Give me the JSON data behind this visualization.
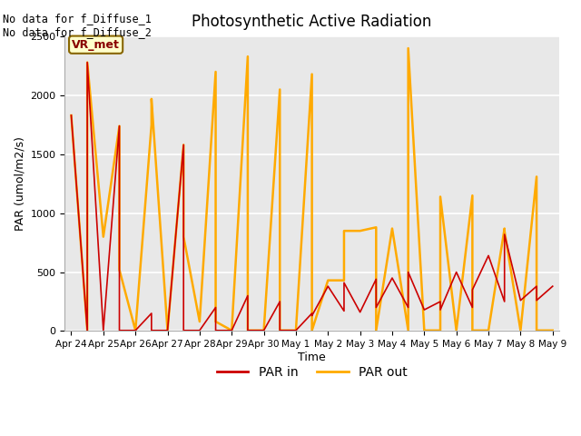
{
  "title": "Photosynthetic Active Radiation",
  "xlabel": "Time",
  "ylabel": "PAR (umol/m2/s)",
  "annotation_text": "No data for f_Diffuse_1\nNo data for f_Diffuse_2",
  "box_label": "VR_met",
  "ylim": [
    0,
    2500
  ],
  "background_color": "#e8e8e8",
  "x_tick_labels": [
    "Apr 24",
    "Apr 25",
    "Apr 26",
    "Apr 27",
    "Apr 28",
    "Apr 29",
    "Apr 30",
    "May 1",
    "May 2",
    "May 3",
    "May 4",
    "May 5",
    "May 6",
    "May 7",
    "May 8",
    "May 9"
  ],
  "par_in_color": "#cc0000",
  "par_out_color": "#ffaa00",
  "par_in_x": [
    0,
    0.5,
    0.5,
    1.0,
    1.5,
    1.5,
    2.0,
    2.5,
    2.5,
    3.0,
    3.5,
    3.5,
    4.0,
    4.5,
    4.5,
    5.0,
    5.5,
    5.5,
    6.0,
    6.5,
    6.5,
    7.0,
    7.5,
    7.5,
    8.0,
    8.5,
    8.5,
    9.0,
    9.5,
    9.5,
    10.0,
    10.5,
    10.5,
    11.0,
    11.5,
    11.5,
    12.0,
    12.5,
    12.5,
    13.0,
    13.5,
    13.5,
    14.0,
    14.5,
    14.5,
    15.0
  ],
  "par_in_y": [
    1830,
    5,
    2280,
    5,
    1740,
    5,
    5,
    150,
    5,
    5,
    1580,
    5,
    5,
    200,
    5,
    5,
    300,
    5,
    5,
    250,
    5,
    5,
    150,
    130,
    380,
    170,
    410,
    160,
    440,
    200,
    450,
    200,
    500,
    180,
    250,
    180,
    500,
    200,
    350,
    640,
    250,
    820,
    260,
    380,
    260,
    380
  ],
  "par_out_x": [
    0,
    0.5,
    0.5,
    1.0,
    1.5,
    1.5,
    2.0,
    2.5,
    2.5,
    3.0,
    3.5,
    3.5,
    4.0,
    4.5,
    4.5,
    5.0,
    5.5,
    5.5,
    6.0,
    6.5,
    6.5,
    7.0,
    7.5,
    7.5,
    8.0,
    8.5,
    8.5,
    9.0,
    9.5,
    9.5,
    10.0,
    10.5,
    10.5,
    11.0,
    11.5,
    11.5,
    12.0,
    12.5,
    12.5,
    13.0,
    13.5,
    13.5,
    14.0,
    14.5,
    14.5,
    15.0
  ],
  "par_out_y": [
    1830,
    5,
    2280,
    800,
    1740,
    520,
    5,
    1750,
    1970,
    5,
    1580,
    800,
    80,
    2200,
    80,
    5,
    2330,
    5,
    5,
    2050,
    5,
    5,
    2180,
    5,
    430,
    430,
    850,
    850,
    880,
    5,
    870,
    5,
    2400,
    5,
    5,
    1140,
    5,
    1150,
    5,
    5,
    870,
    850,
    5,
    1310,
    5,
    5
  ],
  "figsize": [
    6.4,
    4.8
  ],
  "dpi": 100
}
